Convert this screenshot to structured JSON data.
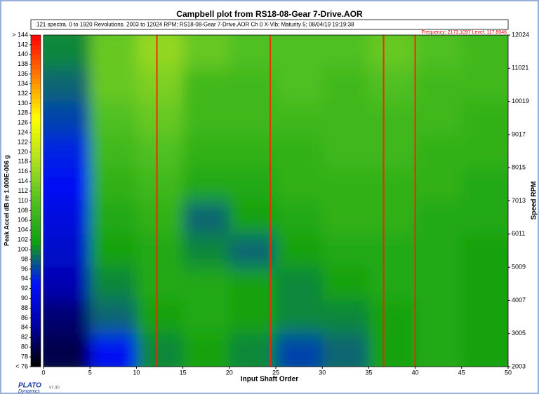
{
  "chart_data": {
    "type": "heatmap",
    "title": "Campbell plot from RS18-08-Gear 7-Drive.AOR",
    "subtitle": "121 spectra. 0 to 1920 Revolutions. 2003 to 12024 RPM; RS18-08-Gear 7-Drive.AOR Ch 0 X-Vib; Maturity 5; 08/04/19 19:19:38",
    "annotation": "Frequency: 2173.1097  Level: 117.8046",
    "x_label": "Input Shaft Order",
    "y_label": "Speed RPM",
    "z_label": "Peak Accel dB re 1.000E-006 g",
    "logo": "PLATO",
    "logo_sub": "Dynamics",
    "version": "v7.40",
    "xlim": [
      0,
      50
    ],
    "xticks": [
      0,
      5,
      10,
      15,
      20,
      25,
      30,
      35,
      40,
      45,
      50
    ],
    "ylim": [
      2003,
      12024
    ],
    "yticks": [
      2003,
      3005,
      4007,
      5009,
      6011,
      7013,
      8015,
      9017,
      10019,
      11021,
      12024
    ],
    "zlim": [
      76,
      144
    ],
    "zticks": [
      {
        "value": 76,
        "label": "< 76"
      },
      78,
      80,
      82,
      84,
      86,
      88,
      90,
      92,
      94,
      96,
      98,
      100,
      102,
      104,
      106,
      108,
      110,
      112,
      114,
      116,
      118,
      120,
      122,
      124,
      126,
      128,
      130,
      132,
      134,
      136,
      138,
      140,
      142,
      {
        "value": 144,
        "label": "> 144"
      }
    ],
    "colorscale": [
      "#000000",
      "#0000a0",
      "#0010ff",
      "#10a010",
      "#50c020",
      "#b0e020",
      "#ffff00",
      "#ff8000",
      "#ff0000"
    ],
    "xbins": [
      0,
      5,
      10,
      15,
      20,
      25,
      30,
      35,
      40,
      45,
      50
    ],
    "ybins": [
      2003,
      3005,
      4007,
      5009,
      6011,
      7013,
      8015,
      9017,
      10019,
      11021,
      12024
    ],
    "z": [
      [
        80,
        92,
        100,
        102,
        100,
        96,
        98,
        102,
        104,
        102
      ],
      [
        82,
        98,
        102,
        104,
        102,
        100,
        100,
        102,
        104,
        102
      ],
      [
        86,
        100,
        104,
        104,
        102,
        100,
        102,
        104,
        104,
        102
      ],
      [
        88,
        102,
        104,
        100,
        98,
        102,
        104,
        104,
        104,
        102
      ],
      [
        90,
        104,
        106,
        98,
        102,
        104,
        106,
        106,
        104,
        104
      ],
      [
        92,
        106,
        108,
        104,
        104,
        106,
        106,
        106,
        106,
        104
      ],
      [
        94,
        108,
        110,
        106,
        106,
        106,
        108,
        108,
        106,
        106
      ],
      [
        96,
        110,
        112,
        108,
        108,
        108,
        108,
        108,
        108,
        106
      ],
      [
        98,
        112,
        114,
        108,
        108,
        110,
        108,
        110,
        108,
        108
      ],
      [
        100,
        112,
        116,
        112,
        110,
        110,
        110,
        112,
        110,
        108
      ]
    ],
    "peaks": {
      "x": [
        12.2,
        24.4,
        36.6,
        40
      ],
      "color": "#ff2000"
    }
  }
}
